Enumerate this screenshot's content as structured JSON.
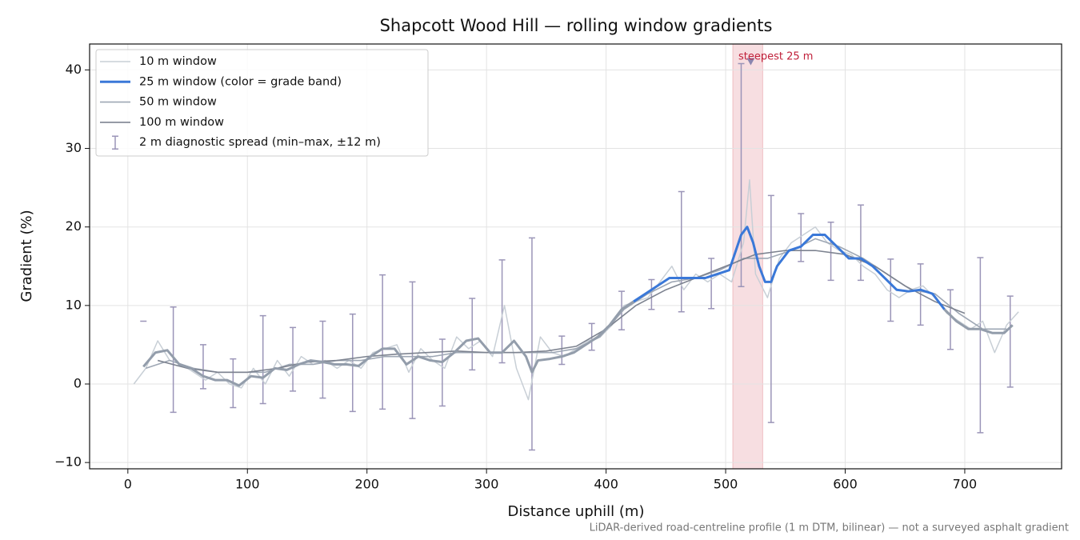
{
  "chart_data": {
    "type": "line",
    "title": "Shapcott Wood Hill — rolling window gradients",
    "xlabel": "Distance uphill (m)",
    "ylabel": "Gradient (%)",
    "footnote": "LiDAR-derived road-centreline profile (1 m DTM, bilinear) — not a surveyed asphalt gradient",
    "xlim": [
      -32,
      781
    ],
    "ylim": [
      -10.8,
      43.3
    ],
    "xticks": [
      0,
      100,
      200,
      300,
      400,
      500,
      600,
      700
    ],
    "yticks": [
      {
        "value": -10,
        "label": "−10"
      },
      0,
      10,
      20,
      30,
      40
    ],
    "grid": true,
    "legend": "upper left",
    "series": [
      {
        "name": "10 m window",
        "color": "#c8cfd6",
        "x": [
          5,
          15,
          25,
          35,
          45,
          55,
          65,
          75,
          85,
          95,
          105,
          115,
          125,
          135,
          145,
          155,
          165,
          175,
          185,
          195,
          205,
          215,
          225,
          235,
          245,
          255,
          265,
          275,
          285,
          295,
          305,
          315,
          325,
          335,
          345,
          355,
          365,
          375,
          385,
          395,
          405,
          415,
          425,
          435,
          445,
          455,
          465,
          475,
          485,
          495,
          505,
          515,
          520,
          525,
          535,
          545,
          555,
          565,
          575,
          585,
          595,
          605,
          615,
          625,
          635,
          645,
          655,
          665,
          675,
          685,
          695,
          705,
          715,
          725,
          735,
          745
        ],
        "values": [
          0,
          2,
          5.5,
          3,
          2.5,
          1.5,
          0.5,
          1.5,
          0,
          -0.5,
          2,
          0,
          3,
          1,
          3.5,
          2.5,
          3,
          2,
          3,
          2,
          4,
          4.5,
          5,
          1.5,
          4.5,
          3,
          2,
          6,
          4.5,
          5.5,
          3.5,
          10,
          2,
          -2,
          6,
          4,
          3.5,
          4.5,
          5.5,
          6,
          7.5,
          10,
          10.5,
          11,
          13,
          15,
          12,
          14,
          13,
          14,
          13,
          18,
          26,
          14,
          11,
          16,
          18,
          19,
          20,
          18,
          17,
          16.5,
          15,
          14,
          12,
          11,
          12,
          12.5,
          11,
          9,
          8,
          7,
          8,
          4,
          7.5,
          9.2
        ]
      },
      {
        "name": "25 m window (color = grade band)",
        "color": "#3a78d8",
        "below_color": "#939dab",
        "threshold": 10,
        "x": [
          13,
          23,
          33,
          43,
          53,
          63,
          73,
          83,
          93,
          103,
          113,
          123,
          133,
          143,
          153,
          163,
          173,
          183,
          193,
          203,
          213,
          223,
          233,
          243,
          253,
          263,
          273,
          283,
          293,
          303,
          313,
          323,
          333,
          338,
          343,
          353,
          363,
          373,
          383,
          393,
          403,
          413,
          423,
          433,
          443,
          453,
          463,
          473,
          483,
          493,
          503,
          513,
          518,
          523,
          528,
          533,
          538,
          543,
          553,
          563,
          573,
          583,
          593,
          603,
          613,
          623,
          633,
          643,
          653,
          663,
          673,
          683,
          693,
          703,
          713,
          723,
          733,
          740
        ],
        "values": [
          2.2,
          4,
          4.3,
          2.5,
          2,
          1,
          0.5,
          0.5,
          -0.2,
          1,
          0.8,
          2,
          1.8,
          2.5,
          3,
          2.8,
          2.5,
          2.5,
          2.3,
          3.5,
          4.5,
          4.5,
          2.5,
          3.5,
          3,
          2.8,
          4,
          5.5,
          5.8,
          4,
          4,
          5.5,
          3.5,
          1.5,
          3,
          3.2,
          3.5,
          4,
          5,
          6,
          7.5,
          9.5,
          10.5,
          11.5,
          12.5,
          13.5,
          13.5,
          13.5,
          13.5,
          14,
          14.5,
          19,
          20,
          18,
          15,
          13,
          13,
          15,
          17,
          17.5,
          19,
          19,
          17.5,
          16,
          16,
          15,
          13.5,
          12,
          11.8,
          12,
          11.5,
          9.5,
          8,
          7,
          7,
          6.5,
          6.5,
          7.5
        ]
      },
      {
        "name": "50 m window",
        "color": "#9ea7b4",
        "x": [
          15,
          35,
          55,
          75,
          95,
          115,
          135,
          155,
          175,
          195,
          215,
          235,
          255,
          275,
          295,
          315,
          335,
          355,
          375,
          395,
          415,
          435,
          455,
          475,
          495,
          515,
          535,
          555,
          575,
          595,
          615,
          635,
          655,
          675,
          695,
          715,
          735
        ],
        "values": [
          2,
          3,
          2,
          1.5,
          1.5,
          1.5,
          2.5,
          2.5,
          3,
          3,
          3.5,
          3.5,
          3.5,
          4,
          4,
          4,
          4,
          4,
          4.5,
          6,
          9.5,
          11.5,
          13,
          13.5,
          14.5,
          16,
          16,
          17,
          18.5,
          17.5,
          16,
          14,
          12,
          11.5,
          9,
          7,
          7
        ]
      },
      {
        "name": "100 m window",
        "color": "#7d8390",
        "x": [
          25,
          50,
          75,
          100,
          125,
          150,
          175,
          200,
          225,
          250,
          275,
          300,
          325,
          350,
          375,
          400,
          425,
          450,
          475,
          500,
          525,
          550,
          575,
          600,
          625,
          650,
          675,
          700
        ],
        "values": [
          3,
          2,
          1.5,
          1.5,
          2,
          2.8,
          3,
          3.5,
          3.8,
          4,
          4.2,
          4,
          4,
          4.2,
          4.8,
          7,
          10,
          12,
          13.5,
          15,
          16.5,
          17,
          17,
          16.5,
          15,
          12.5,
          10.5,
          9
        ]
      }
    ],
    "error_bars": {
      "name": "2 m diagnostic spread (min–max, ±12 m)",
      "color": "#9b95b8",
      "x": [
        13,
        38,
        63,
        88,
        113,
        138,
        163,
        188,
        213,
        238,
        263,
        288,
        313,
        338,
        363,
        388,
        413,
        438,
        463,
        488,
        513,
        538,
        563,
        588,
        613,
        638,
        663,
        688,
        713,
        738
      ],
      "lo": [
        8,
        -3.6,
        -0.6,
        -3,
        -2.5,
        -0.9,
        -1.8,
        -3.5,
        -3.2,
        -4.4,
        -2.8,
        1.8,
        2.7,
        -8.4,
        2.5,
        4.3,
        6.9,
        9.5,
        9.2,
        9.6,
        12.4,
        -4.9,
        15.6,
        13.2,
        13.2,
        8,
        7.5,
        4.4,
        -6.2,
        -0.4
      ],
      "hi": [
        8,
        9.8,
        5,
        3.2,
        8.7,
        7.2,
        8,
        8.9,
        13.9,
        13,
        5.7,
        10.9,
        15.8,
        18.6,
        6.1,
        7.7,
        11.8,
        13.3,
        24.5,
        16,
        40.8,
        24,
        21.7,
        20.6,
        22.8,
        15.9,
        15.3,
        12,
        16.1,
        11.2
      ]
    },
    "highlight": {
      "x": [
        506,
        531
      ],
      "color": "#e8a0a8",
      "label": "steepest 25 m",
      "label_color": "#c0203a",
      "marker": [
        521,
        41
      ],
      "marker_color": "#8a86b0"
    }
  }
}
